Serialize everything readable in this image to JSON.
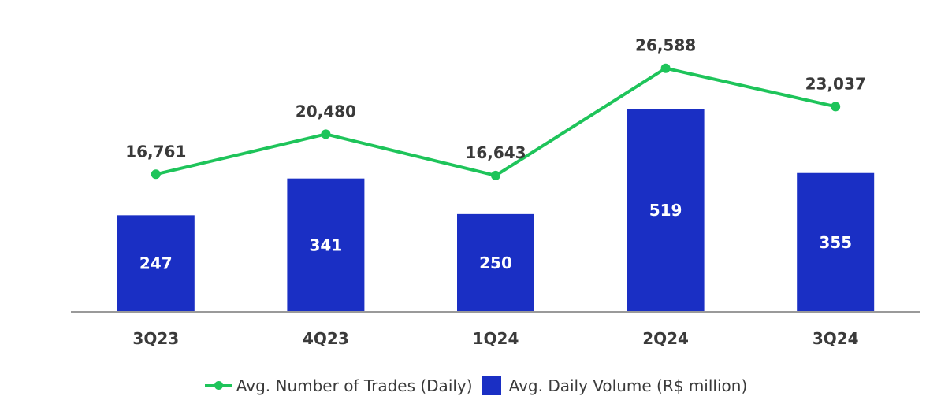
{
  "chart_data": {
    "type": "bar",
    "categories": [
      "3Q23",
      "4Q23",
      "1Q24",
      "2Q24",
      "3Q24"
    ],
    "series": [
      {
        "name": "Avg. Daily Volume (R$ million)",
        "type": "bar",
        "axis": "left",
        "values": [
          247,
          341,
          250,
          519,
          355
        ],
        "labels": [
          "247",
          "341",
          "250",
          "519",
          "355"
        ],
        "color": "#1a2fc4"
      },
      {
        "name": "Avg. Number of Trades (Daily)",
        "type": "line",
        "axis": "right",
        "values": [
          16761,
          20480,
          16643,
          26588,
          23037
        ],
        "labels": [
          "16,761",
          "20,480",
          "16,643",
          "26,588",
          "23,037"
        ],
        "color": "#1ec45a"
      }
    ],
    "bar_axis_range": [
      0,
      580
    ],
    "line_axis_range": [
      4000,
      30000
    ],
    "grid": false,
    "legend_position": "bottom"
  },
  "colors": {
    "bar": "#1a2fc4",
    "line": "#1ec45a",
    "axis": "#9a9a9a",
    "text": "#3a3a3a"
  }
}
